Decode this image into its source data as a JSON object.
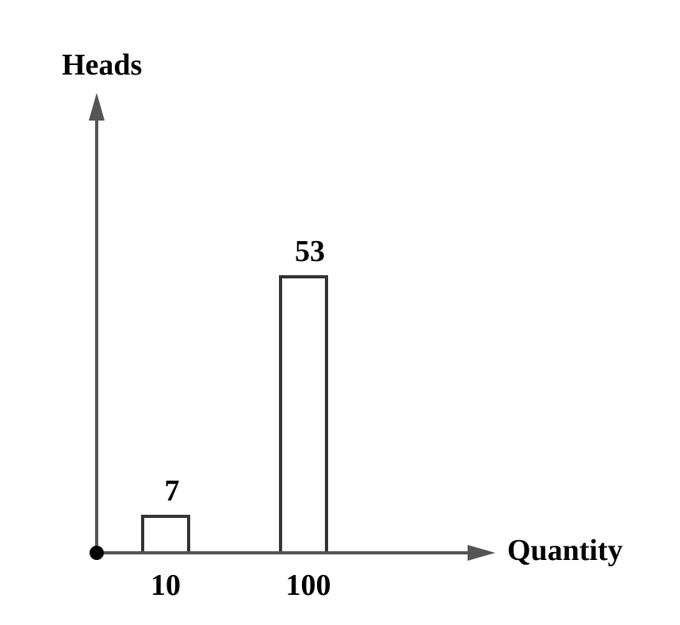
{
  "chart_data": {
    "type": "bar",
    "categories": [
      "10",
      "100"
    ],
    "values": [
      7,
      53
    ],
    "data_labels": [
      "7",
      "53"
    ],
    "xlabel": "Quantity",
    "ylabel": "Heads",
    "ylim": [
      0,
      80
    ],
    "grid": false,
    "legend": "none",
    "colors": {
      "axis": "#555555",
      "bar_fill": "#ffffff",
      "bar_stroke": "#333333",
      "text": "#000000"
    }
  }
}
